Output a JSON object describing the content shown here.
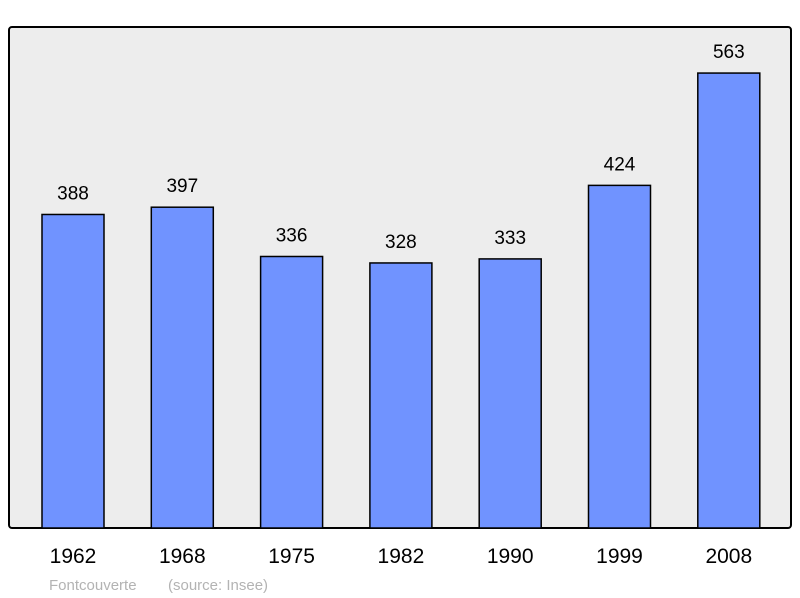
{
  "chart_data": {
    "type": "bar",
    "categories": [
      "1962",
      "1968",
      "1975",
      "1982",
      "1990",
      "1999",
      "2008"
    ],
    "values": [
      388,
      397,
      336,
      328,
      333,
      424,
      563
    ],
    "data_labels": [
      "388",
      "397",
      "336",
      "328",
      "333",
      "424",
      "563"
    ],
    "ylim": [
      0,
      620
    ],
    "grid": false,
    "bar_color": "#7093ff",
    "background_color": "#ededed",
    "footer": {
      "place": "Fontcouverte",
      "source": "(source: Insee)"
    }
  }
}
